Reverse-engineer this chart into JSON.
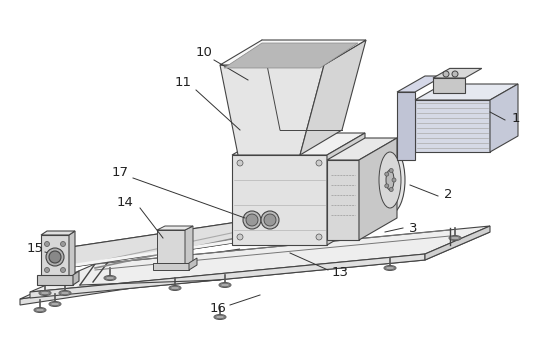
{
  "bg_color": "#ffffff",
  "line_color": "#444444",
  "label_color": "#222222",
  "figsize": [
    5.34,
    3.43
  ],
  "dpi": 100
}
